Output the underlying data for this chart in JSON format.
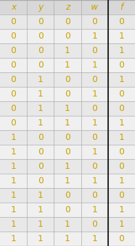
{
  "headers": [
    "x",
    "y",
    "z",
    "w",
    "f"
  ],
  "rows": [
    [
      0,
      0,
      0,
      0,
      0
    ],
    [
      0,
      0,
      0,
      1,
      1
    ],
    [
      0,
      0,
      1,
      0,
      1
    ],
    [
      0,
      0,
      1,
      1,
      0
    ],
    [
      0,
      1,
      0,
      0,
      1
    ],
    [
      0,
      1,
      0,
      1,
      0
    ],
    [
      0,
      1,
      1,
      0,
      0
    ],
    [
      0,
      1,
      1,
      1,
      1
    ],
    [
      1,
      0,
      0,
      0,
      1
    ],
    [
      1,
      0,
      0,
      1,
      0
    ],
    [
      1,
      0,
      1,
      0,
      0
    ],
    [
      1,
      0,
      1,
      1,
      1
    ],
    [
      1,
      1,
      0,
      0,
      0
    ],
    [
      1,
      1,
      0,
      1,
      1
    ],
    [
      1,
      1,
      1,
      0,
      1
    ],
    [
      1,
      1,
      1,
      1,
      0
    ]
  ],
  "header_color": "#c8a000",
  "data_color": "#c8a000",
  "row_bg_even": "#e8e8e8",
  "row_bg_odd": "#f0f0f0",
  "header_bg": "#d8d8d8",
  "divider_color": "#aaaaaa",
  "f_divider_color": "#222222",
  "figsize": [
    1.96,
    3.57
  ],
  "dpi": 100
}
